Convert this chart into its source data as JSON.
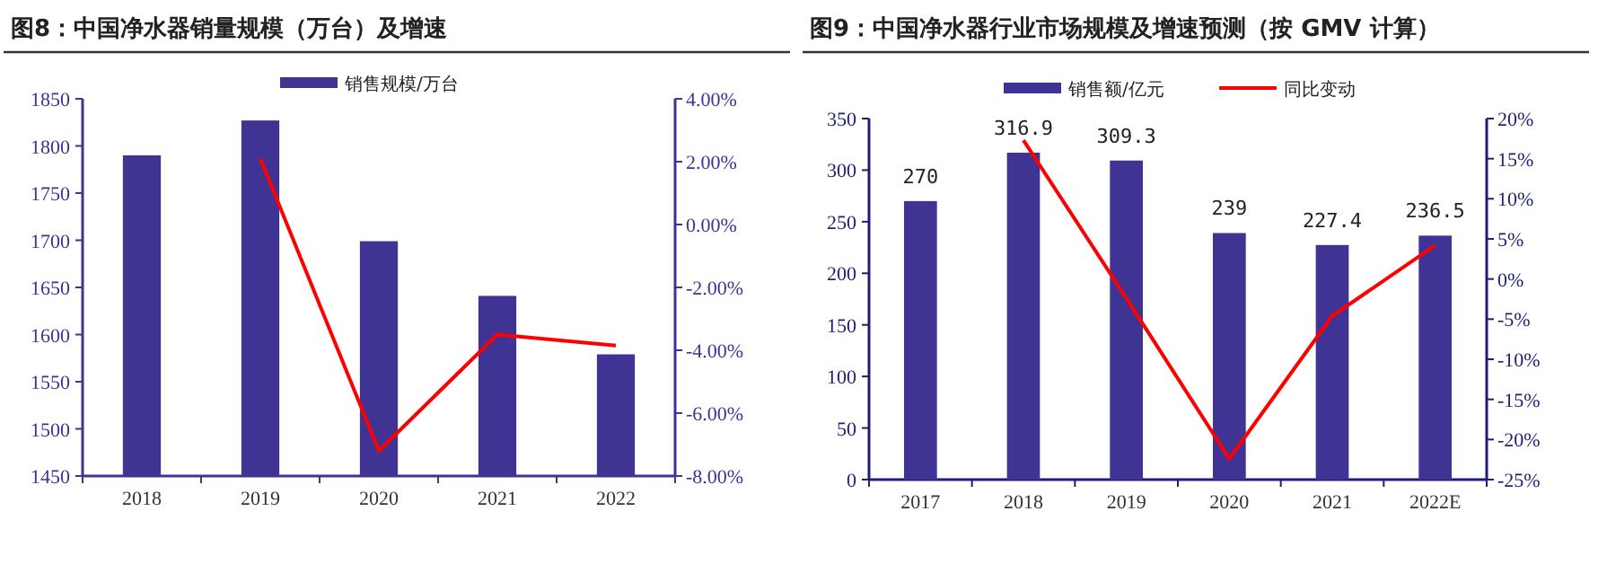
{
  "chart_data": [
    {
      "type": "bar",
      "title": "图8：中国净水器销量规模（万台）及增速",
      "categories": [
        "2018",
        "2019",
        "2020",
        "2021",
        "2022"
      ],
      "series": [
        {
          "name": "销售规模/万台",
          "color": "#3f3393",
          "values": [
            1790,
            1827,
            1699,
            1641,
            1579
          ]
        },
        {
          "type": "line",
          "axis": "y2",
          "color": "#ff0000",
          "values": [
            null,
            2.1,
            -7.2,
            -3.5,
            -3.85
          ]
        }
      ],
      "ylim": [
        1450,
        1850
      ],
      "yticks": [
        1450,
        1500,
        1550,
        1600,
        1650,
        1700,
        1750,
        1800,
        1850
      ],
      "y2lim": [
        -8,
        4
      ],
      "y2ticks": [
        {
          "value": -8,
          "label": "-8.00%"
        },
        {
          "value": -6,
          "label": "-6.00%"
        },
        {
          "value": -4,
          "label": "-4.00%"
        },
        {
          "value": -2,
          "label": "-2.00%"
        },
        {
          "value": 0,
          "label": "0.00%"
        },
        {
          "value": 2,
          "label": "2.00%"
        },
        {
          "value": 4,
          "label": "4.00%"
        }
      ],
      "legend": "top",
      "grid": false
    },
    {
      "type": "bar",
      "title": "图9：中国净水器行业市场规模及增速预测（按 GMV 计算）",
      "categories": [
        "2017",
        "2018",
        "2019",
        "2020",
        "2021",
        "2022E"
      ],
      "series": [
        {
          "name": "销售额/亿元",
          "color": "#3f3393",
          "values": [
            270,
            316.9,
            309.3,
            239,
            227.4,
            236.5
          ],
          "value_labels": [
            "270",
            "316.9",
            "309.3",
            "239",
            "227.4",
            "236.5"
          ]
        },
        {
          "name": "同比变动",
          "type": "line",
          "axis": "y2",
          "color": "#ff0000",
          "values": [
            null,
            17.3,
            -2.4,
            -22.4,
            -4.6,
            4.2
          ]
        }
      ],
      "ylim": [
        0,
        350
      ],
      "yticks": [
        0,
        50,
        100,
        150,
        200,
        250,
        300,
        350
      ],
      "y2lim": [
        -25,
        20
      ],
      "y2ticks": [
        {
          "value": -25,
          "label": "-25%"
        },
        {
          "value": -20,
          "label": "-20%"
        },
        {
          "value": -15,
          "label": "-15%"
        },
        {
          "value": -10,
          "label": "-10%"
        },
        {
          "value": -5,
          "label": "-5%"
        },
        {
          "value": 0,
          "label": "0%"
        },
        {
          "value": 5,
          "label": "5%"
        },
        {
          "value": 10,
          "label": "10%"
        },
        {
          "value": 15,
          "label": "15%"
        },
        {
          "value": 20,
          "label": "20%"
        }
      ],
      "legend": "top",
      "grid": false
    }
  ]
}
